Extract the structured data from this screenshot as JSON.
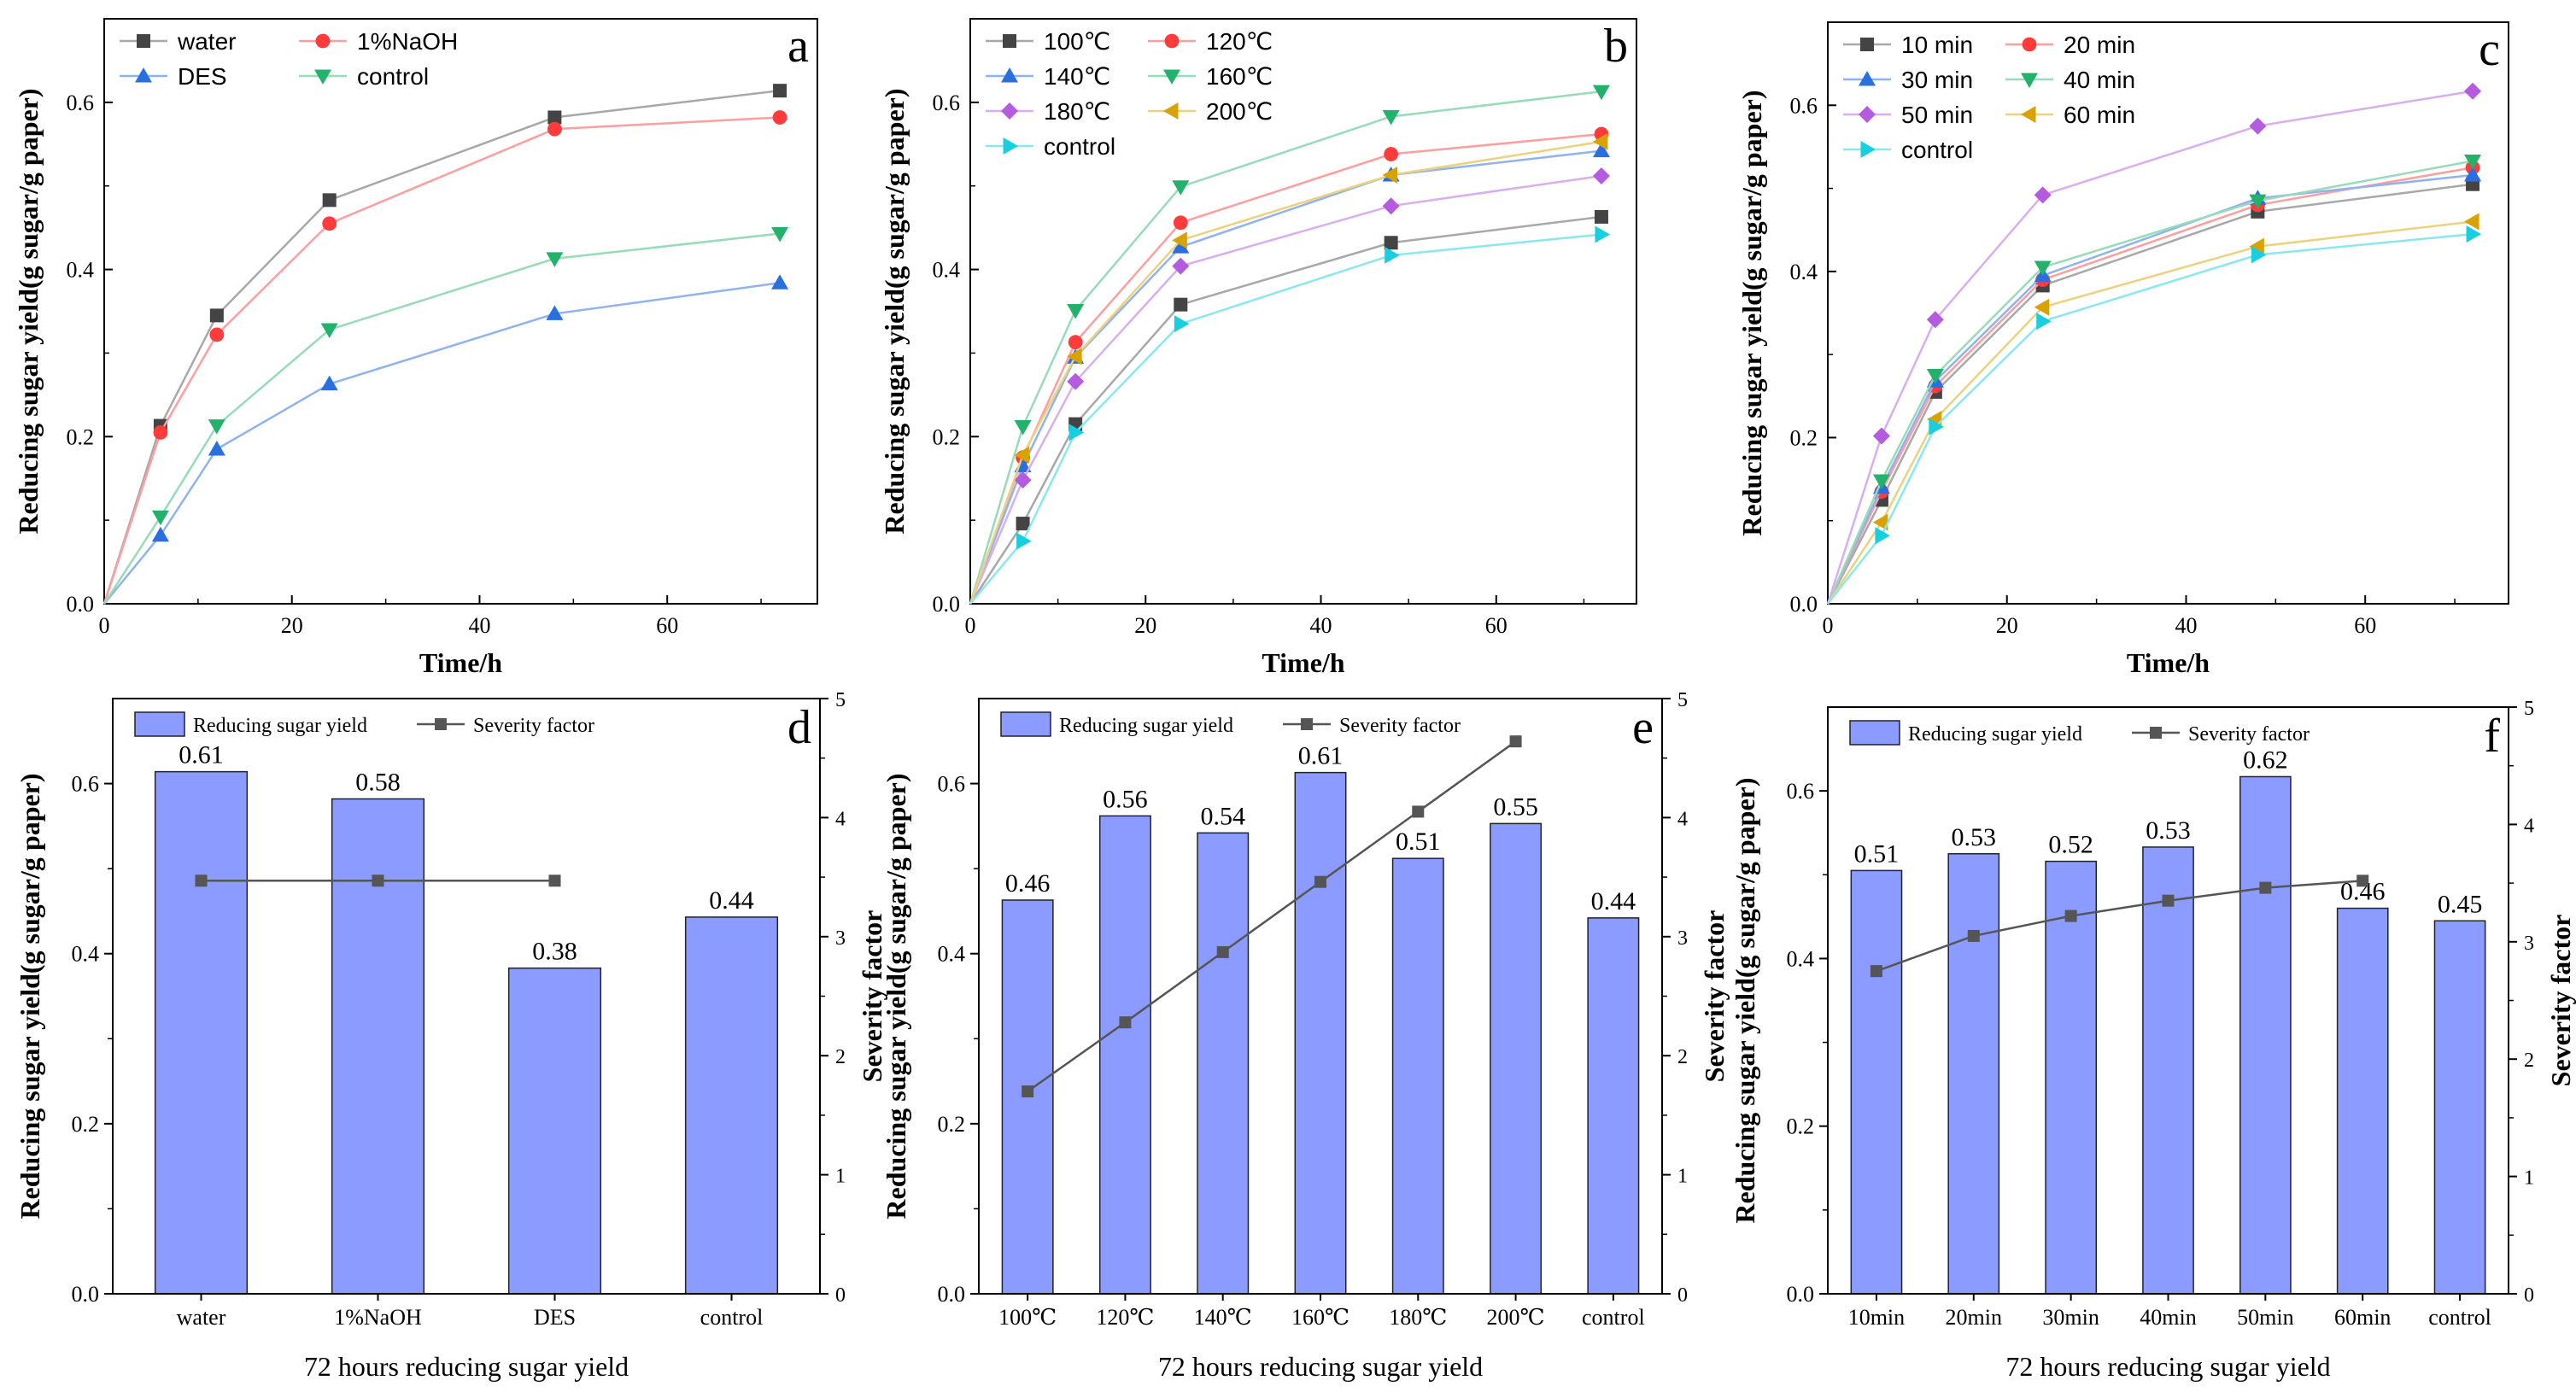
{
  "chart_data": [
    {
      "panel_letter": "a",
      "type": "line",
      "x": [
        0,
        6,
        12,
        24,
        48,
        72
      ],
      "xlabel": "Time/h",
      "ylabel": "Reducing sugar yield(g sugar/g paper)",
      "xlim": [
        0,
        76
      ],
      "ylim": [
        0,
        0.7
      ],
      "xticks": [
        0,
        20,
        40,
        60
      ],
      "yticks": [
        0.0,
        0.2,
        0.4,
        0.6
      ],
      "grid": false,
      "legend_position": "top-left",
      "series": [
        {
          "name": "water",
          "color": "#444444",
          "line_color": "#a8a8a8",
          "marker": "square",
          "values": [
            0,
            0.213,
            0.345,
            0.483,
            0.582,
            0.614
          ]
        },
        {
          "name": "1%NaOH",
          "color": "#ff3b3b",
          "line_color": "#ff9e9e",
          "marker": "circle",
          "values": [
            0,
            0.205,
            0.322,
            0.455,
            0.568,
            0.582
          ]
        },
        {
          "name": "DES",
          "color": "#2a6fe0",
          "line_color": "#8fb3ee",
          "marker": "triangle-up",
          "values": [
            0,
            0.082,
            0.185,
            0.263,
            0.347,
            0.384
          ]
        },
        {
          "name": "control",
          "color": "#22b26c",
          "line_color": "#98dbb9",
          "marker": "triangle-down",
          "values": [
            0,
            0.104,
            0.213,
            0.328,
            0.413,
            0.443
          ]
        }
      ]
    },
    {
      "panel_letter": "b",
      "type": "line",
      "x": [
        0,
        6,
        12,
        24,
        48,
        72
      ],
      "xlabel": "Time/h",
      "ylabel": "Reducing sugar yield(g sugar/g paper)",
      "xlim": [
        0,
        76
      ],
      "ylim": [
        0,
        0.7
      ],
      "xticks": [
        0,
        20,
        40,
        60
      ],
      "yticks": [
        0.0,
        0.2,
        0.4,
        0.6
      ],
      "grid": false,
      "legend_position": "top-left",
      "series": [
        {
          "name": "100℃",
          "color": "#444444",
          "line_color": "#a8a8a8",
          "marker": "square",
          "values": [
            0,
            0.096,
            0.215,
            0.358,
            0.432,
            0.463
          ]
        },
        {
          "name": "120℃",
          "color": "#ff3b3b",
          "line_color": "#ff9e9e",
          "marker": "circle",
          "values": [
            0,
            0.175,
            0.313,
            0.456,
            0.538,
            0.562
          ]
        },
        {
          "name": "140℃",
          "color": "#2a6fe0",
          "line_color": "#8fb3ee",
          "marker": "triangle-up",
          "values": [
            0,
            0.165,
            0.295,
            0.427,
            0.513,
            0.542
          ]
        },
        {
          "name": "160℃",
          "color": "#22b26c",
          "line_color": "#98dbb9",
          "marker": "triangle-down",
          "values": [
            0,
            0.212,
            0.351,
            0.499,
            0.583,
            0.613
          ]
        },
        {
          "name": "180℃",
          "color": "#b45be0",
          "line_color": "#d8aef0",
          "marker": "diamond",
          "values": [
            0,
            0.148,
            0.266,
            0.404,
            0.476,
            0.512
          ]
        },
        {
          "name": "200℃",
          "color": "#d8a200",
          "line_color": "#ecd27f",
          "marker": "triangle-left",
          "values": [
            0,
            0.178,
            0.296,
            0.435,
            0.513,
            0.553
          ]
        },
        {
          "name": "control",
          "color": "#18cfe0",
          "line_color": "#8be7ef",
          "marker": "triangle-right",
          "values": [
            0,
            0.075,
            0.205,
            0.335,
            0.417,
            0.442
          ]
        }
      ]
    },
    {
      "panel_letter": "c",
      "type": "line",
      "x": [
        0,
        6,
        12,
        24,
        48,
        72
      ],
      "xlabel": "Time/h",
      "ylabel": "Reducing sugar yield(g sugar/g paper)",
      "xlim": [
        0,
        76
      ],
      "ylim": [
        0,
        0.7
      ],
      "xticks": [
        0,
        20,
        40,
        60
      ],
      "yticks": [
        0.0,
        0.2,
        0.4,
        0.6
      ],
      "grid": false,
      "legend_position": "top-left",
      "series": [
        {
          "name": "10 min",
          "color": "#444444",
          "line_color": "#a8a8a8",
          "marker": "square",
          "values": [
            0,
            0.125,
            0.255,
            0.383,
            0.472,
            0.505
          ]
        },
        {
          "name": "20 min",
          "color": "#ff3b3b",
          "line_color": "#ff9e9e",
          "marker": "circle",
          "values": [
            0,
            0.135,
            0.262,
            0.39,
            0.48,
            0.525
          ]
        },
        {
          "name": "30 min",
          "color": "#2a6fe0",
          "line_color": "#8fb3ee",
          "marker": "triangle-up",
          "values": [
            0,
            0.14,
            0.268,
            0.395,
            0.488,
            0.516
          ]
        },
        {
          "name": "40 min",
          "color": "#22b26c",
          "line_color": "#98dbb9",
          "marker": "triangle-down",
          "values": [
            0,
            0.148,
            0.275,
            0.405,
            0.485,
            0.533
          ]
        },
        {
          "name": "50 min",
          "color": "#b45be0",
          "line_color": "#d8aef0",
          "marker": "diamond",
          "values": [
            0,
            0.202,
            0.342,
            0.492,
            0.575,
            0.617
          ]
        },
        {
          "name": "60 min",
          "color": "#d8a200",
          "line_color": "#ecd27f",
          "marker": "triangle-left",
          "values": [
            0,
            0.098,
            0.222,
            0.357,
            0.43,
            0.46
          ]
        },
        {
          "name": "control",
          "color": "#18cfe0",
          "line_color": "#8be7ef",
          "marker": "triangle-right",
          "values": [
            0,
            0.082,
            0.213,
            0.34,
            0.42,
            0.445
          ]
        }
      ]
    },
    {
      "panel_letter": "d",
      "type": "bar",
      "categories": [
        "water",
        "1%NaOH",
        "DES",
        "control"
      ],
      "xlabel": "72 hours reducing sugar yield",
      "ylabel": "Reducing sugar yield(g sugar/g paper)",
      "y2label": "Severity factor",
      "ylim": [
        0,
        0.7
      ],
      "y2lim": [
        0,
        5
      ],
      "yticks": [
        0.0,
        0.2,
        0.4,
        0.6
      ],
      "y2ticks": [
        0,
        1,
        2,
        3,
        4,
        5
      ],
      "grid": false,
      "legend_position": "top",
      "bar_series": {
        "name": "Reducing sugar yield",
        "color": "#8c9bff",
        "values": [
          0.614,
          0.582,
          0.383,
          0.443
        ],
        "labels": [
          "0.61",
          "0.58",
          "0.38",
          "0.44"
        ]
      },
      "line_series": {
        "name": "Severity factor",
        "color": "#555555",
        "values": [
          3.47,
          3.47,
          3.47,
          null
        ]
      }
    },
    {
      "panel_letter": "e",
      "type": "bar",
      "categories": [
        "100℃",
        "120℃",
        "140℃",
        "160℃",
        "180℃",
        "200℃",
        "control"
      ],
      "xlabel": "72 hours reducing sugar yield",
      "ylabel": "Reducing sugar yield(g sugar/g paper)",
      "y2label": "Severity factor",
      "ylim": [
        0,
        0.7
      ],
      "y2lim": [
        0,
        5
      ],
      "yticks": [
        0.0,
        0.2,
        0.4,
        0.6
      ],
      "y2ticks": [
        0,
        1,
        2,
        3,
        4,
        5
      ],
      "grid": false,
      "legend_position": "top",
      "bar_series": {
        "name": "Reducing sugar yield",
        "color": "#8c9bff",
        "values": [
          0.463,
          0.562,
          0.542,
          0.613,
          0.512,
          0.553,
          0.442
        ],
        "labels": [
          "0.46",
          "0.56",
          "0.54",
          "0.61",
          "0.51",
          "0.55",
          "0.44"
        ]
      },
      "line_series": {
        "name": "Severity factor",
        "color": "#555555",
        "values": [
          1.7,
          2.28,
          2.87,
          3.46,
          4.05,
          4.64,
          null
        ]
      }
    },
    {
      "panel_letter": "f",
      "type": "bar",
      "categories": [
        "10min",
        "20min",
        "30min",
        "40min",
        "50min",
        "60min",
        "control"
      ],
      "xlabel": "72 hours reducing sugar yield",
      "ylabel": "Reducing sugar yield(g sugar/g paper)",
      "y2label": "Severity factor",
      "ylim": [
        0,
        0.7
      ],
      "y2lim": [
        0,
        5
      ],
      "yticks": [
        0.0,
        0.2,
        0.4,
        0.6
      ],
      "y2ticks": [
        0,
        1,
        2,
        3,
        4,
        5
      ],
      "grid": false,
      "legend_position": "top",
      "bar_series": {
        "name": "Reducing sugar yield",
        "color": "#8c9bff",
        "values": [
          0.505,
          0.525,
          0.516,
          0.533,
          0.617,
          0.46,
          0.445
        ],
        "labels": [
          "0.51",
          "0.53",
          "0.52",
          "0.53",
          "0.62",
          "0.46",
          "0.45"
        ]
      },
      "line_series": {
        "name": "Severity factor",
        "color": "#555555",
        "values": [
          2.75,
          3.05,
          3.22,
          3.35,
          3.46,
          3.52,
          null
        ]
      }
    }
  ]
}
